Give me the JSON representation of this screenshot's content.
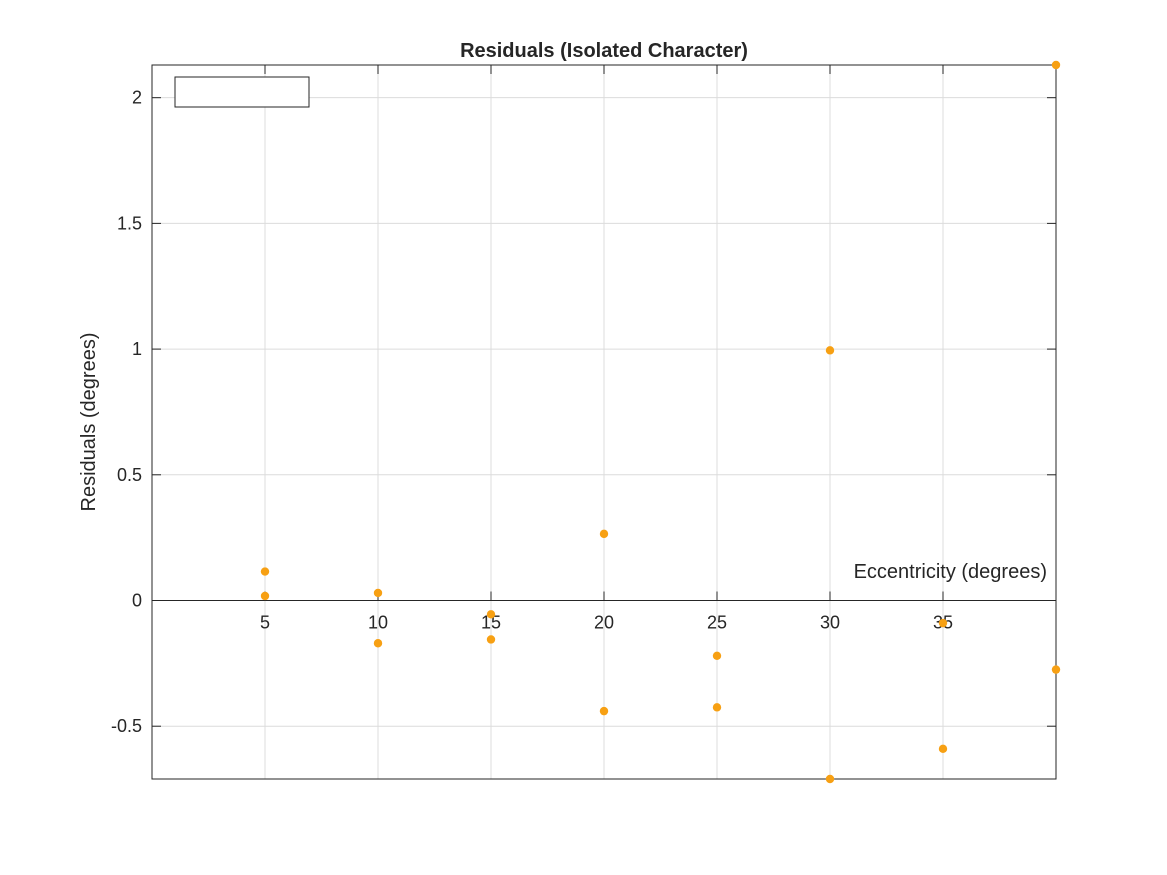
{
  "chart_data": {
    "type": "scatter",
    "title": "Residuals (Isolated Character)",
    "xlabel": "Eccentricity (degrees)",
    "ylabel": "Residuals (degrees)",
    "xlim": [
      0,
      40
    ],
    "ylim": [
      -0.71,
      2.13
    ],
    "x_ticks": [
      5,
      10,
      15,
      20,
      25,
      30,
      35
    ],
    "x_tick_labels": [
      "5",
      "10",
      "15",
      "20",
      "25",
      "30",
      "35"
    ],
    "y_ticks": [
      -0.5,
      0,
      0.5,
      1,
      1.5,
      2
    ],
    "y_tick_labels": [
      "-0.5",
      "0",
      "0.5",
      "1",
      "1.5",
      "2"
    ],
    "grid": true,
    "x_axis_location": "origin",
    "legend": {
      "placement": "top-left",
      "entries": []
    },
    "marker_color": "#F7A013",
    "series": [
      {
        "points": [
          {
            "x": 5,
            "y": 0.115
          },
          {
            "x": 5,
            "y": 0.018
          },
          {
            "x": 10,
            "y": 0.03
          },
          {
            "x": 10,
            "y": -0.17
          },
          {
            "x": 15,
            "y": -0.055
          },
          {
            "x": 15,
            "y": -0.155
          },
          {
            "x": 20,
            "y": 0.265
          },
          {
            "x": 20,
            "y": -0.44
          },
          {
            "x": 25,
            "y": -0.22
          },
          {
            "x": 25,
            "y": -0.425
          },
          {
            "x": 30,
            "y": 0.995
          },
          {
            "x": 30,
            "y": -0.71
          },
          {
            "x": 35,
            "y": -0.09
          },
          {
            "x": 35,
            "y": -0.59
          },
          {
            "x": 40,
            "y": 2.13
          },
          {
            "x": 40,
            "y": -0.275
          }
        ]
      }
    ]
  }
}
